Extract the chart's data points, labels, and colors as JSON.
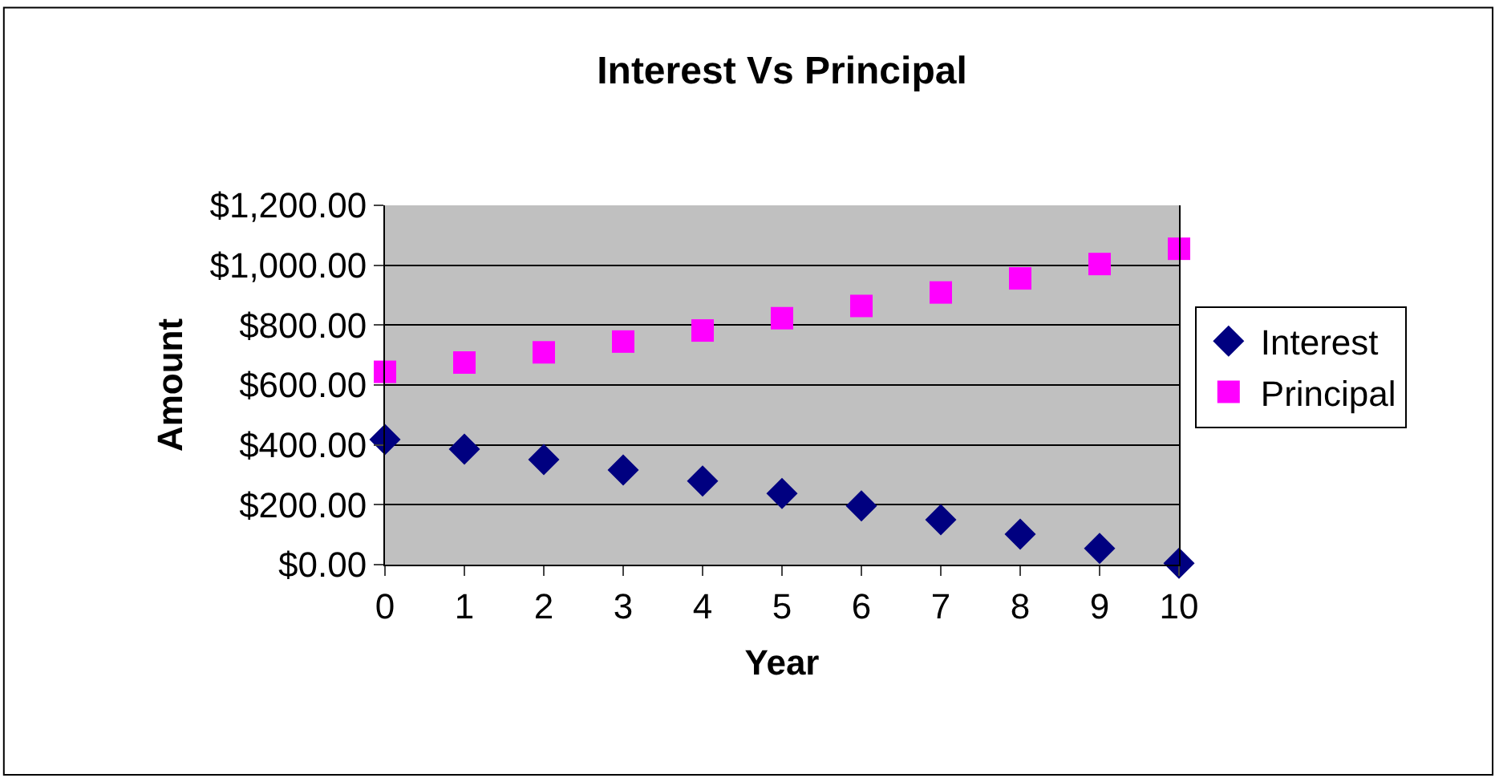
{
  "chart_data": {
    "type": "scatter",
    "title": "Interest Vs Principal",
    "xlabel": "Year",
    "ylabel": "Amount",
    "x": [
      0,
      1,
      2,
      3,
      4,
      5,
      6,
      7,
      8,
      9,
      10
    ],
    "series": [
      {
        "name": "Interest",
        "color": "#000080",
        "marker": "diamond",
        "values": [
          418,
          386,
          351,
          316,
          279,
          238,
          196,
          150,
          102,
          54,
          5
        ]
      },
      {
        "name": "Principal",
        "color": "#ff00ff",
        "marker": "square",
        "values": [
          644,
          675,
          709,
          745,
          782,
          823,
          864,
          909,
          956,
          1004,
          1055
        ]
      }
    ],
    "xlim": [
      0,
      10
    ],
    "xticks": [
      0,
      1,
      2,
      3,
      4,
      5,
      6,
      7,
      8,
      9,
      10
    ],
    "ylim": [
      0,
      1200
    ],
    "yticks": [
      {
        "value": 0,
        "label": "$0.00"
      },
      {
        "value": 200,
        "label": "$200.00"
      },
      {
        "value": 400,
        "label": "$400.00"
      },
      {
        "value": 600,
        "label": "$600.00"
      },
      {
        "value": 800,
        "label": "$800.00"
      },
      {
        "value": 1000,
        "label": "$1,000.00"
      },
      {
        "value": 1200,
        "label": "$1,200.00"
      }
    ],
    "grid": "y",
    "legend": "right"
  }
}
